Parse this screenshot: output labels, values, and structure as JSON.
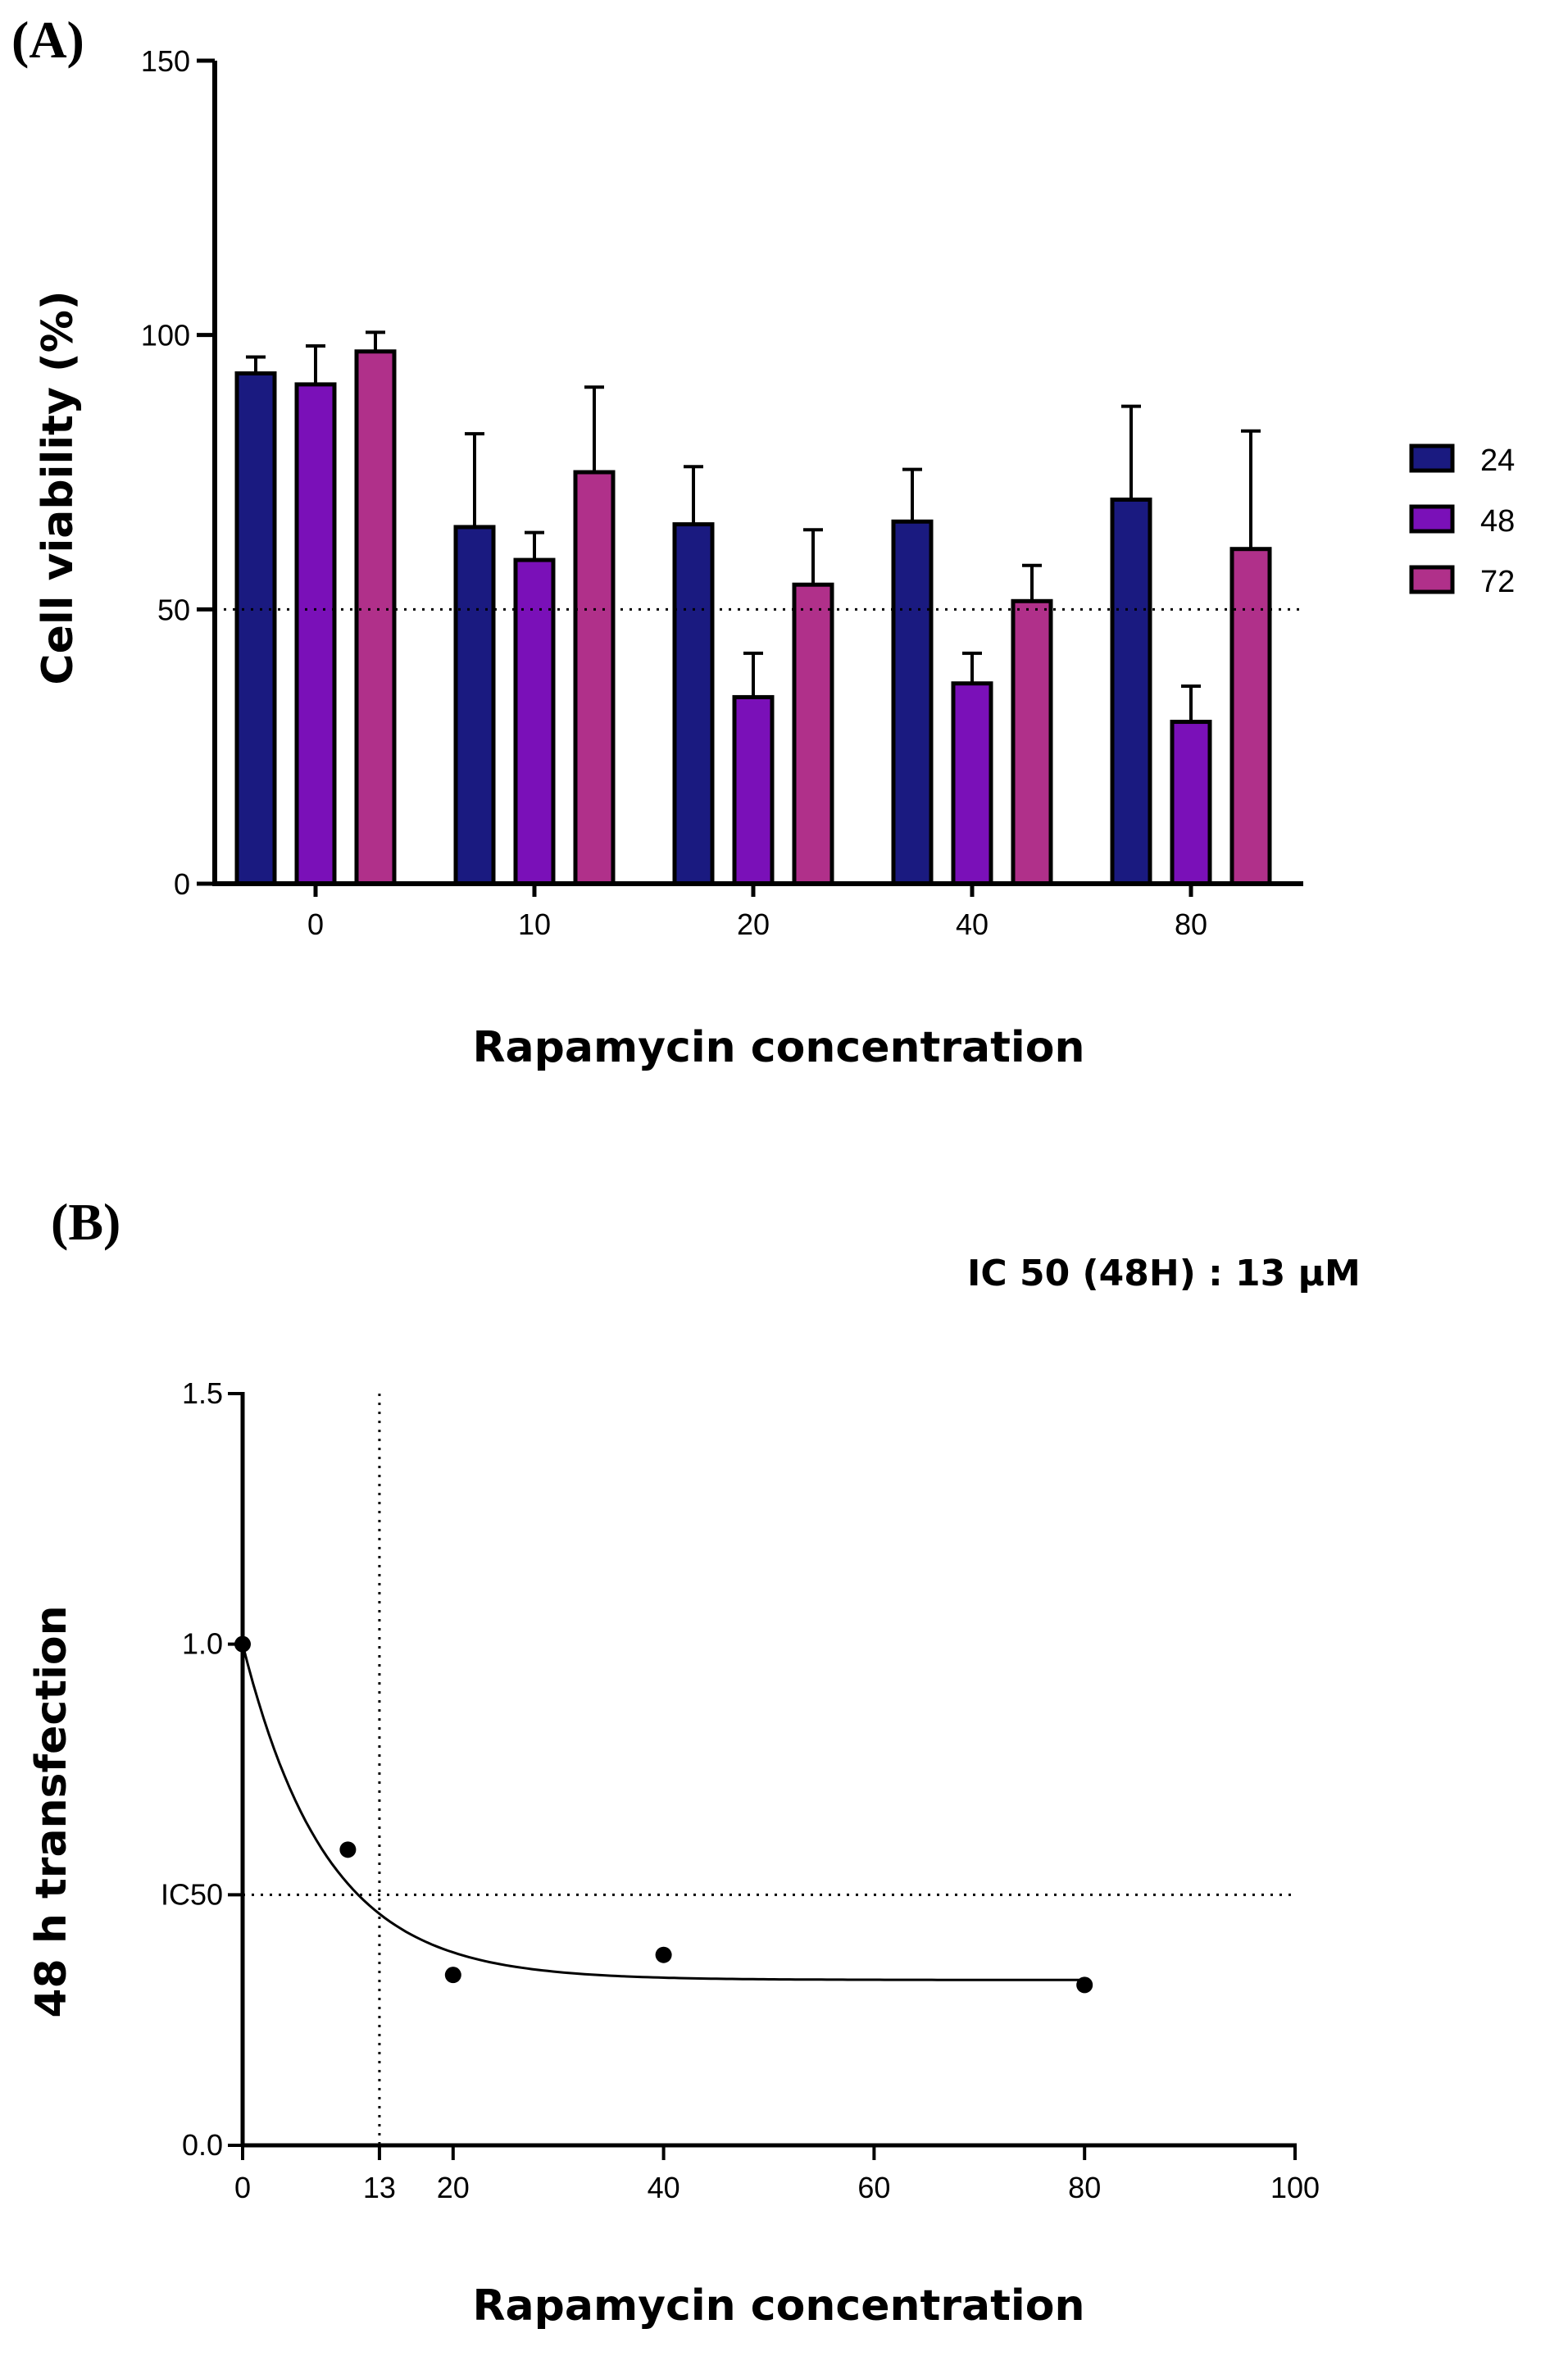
{
  "chart_data": [
    {
      "panel": "(A)",
      "type": "bar",
      "ylabel": "Cell viability (%)",
      "xlabel": "Rapamycin concentration",
      "categories": [
        "0",
        "10",
        "20",
        "40",
        "80"
      ],
      "series": [
        {
          "name": "24",
          "color": "#1a1a80",
          "values": [
            93,
            65,
            65.5,
            66,
            70
          ],
          "errors": [
            3,
            17,
            10.5,
            9.5,
            17
          ]
        },
        {
          "name": "48",
          "color": "#7a10b8",
          "values": [
            91,
            59,
            34,
            36.5,
            29.5
          ],
          "errors": [
            7,
            5,
            8,
            5.5,
            6.5
          ]
        },
        {
          "name": "72",
          "color": "#b0308a",
          "values": [
            97,
            75,
            54.5,
            51.5,
            61
          ],
          "errors": [
            3.5,
            15.5,
            10,
            6.5,
            21.5
          ]
        }
      ],
      "ylim": [
        0,
        150
      ],
      "yticks": [
        0,
        50,
        100,
        150
      ],
      "reference_line_y": 50,
      "legend_position": "right",
      "grid": false
    },
    {
      "panel": "(B)",
      "type": "scatter",
      "annotation": "IC 50 (48H) : 13 μM",
      "ylabel": "48 h transfection",
      "xlabel": "Rapamycin concentration",
      "points": [
        {
          "x": 0,
          "y": 1.0
        },
        {
          "x": 10,
          "y": 0.59
        },
        {
          "x": 20,
          "y": 0.34
        },
        {
          "x": 40,
          "y": 0.38
        },
        {
          "x": 80,
          "y": 0.32
        }
      ],
      "fit_curve": {
        "bottom": 0.33,
        "top": 1.0,
        "rate": 0.125
      },
      "xlim": [
        0,
        100
      ],
      "ylim": [
        0,
        1.5
      ],
      "xticks": [
        "0",
        "13",
        "20",
        "40",
        "60",
        "80",
        "100"
      ],
      "yticks": [
        {
          "value": 0,
          "label": "0.0"
        },
        {
          "value": 0.5,
          "label": "IC50"
        },
        {
          "value": 1.0,
          "label": "1.0"
        },
        {
          "value": 1.5,
          "label": "1.5"
        }
      ],
      "ic50_x": 13,
      "ic50_y": 0.5,
      "grid": false
    }
  ]
}
